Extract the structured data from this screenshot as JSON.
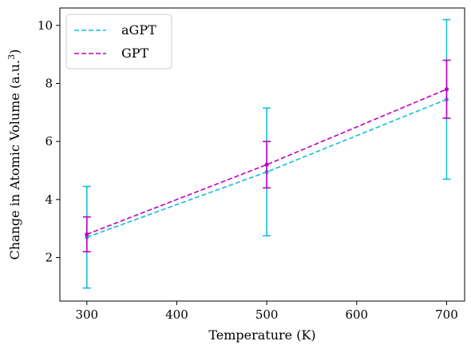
{
  "chart_data": {
    "type": "line",
    "x": [
      300,
      500,
      700
    ],
    "xlabel": "Temperature (K)",
    "ylabel_main": "Change in Atomic Volume (a.u.",
    "ylabel_sup": "3",
    "ylabel_close": ")",
    "xlim": [
      270,
      720
    ],
    "ylim": [
      0.5,
      10.6
    ],
    "xticks": [
      "300",
      "400",
      "500",
      "600",
      "700"
    ],
    "yticks": [
      "2",
      "4",
      "6",
      "8",
      "10"
    ],
    "legend_position": "top-left",
    "series": [
      {
        "name": "aGPT",
        "color": "#17becf",
        "style": "dashed",
        "values": [
          2.7,
          4.95,
          7.45
        ],
        "err": [
          1.75,
          2.2,
          2.75
        ]
      },
      {
        "name": "GPT",
        "color": "#bf00bf",
        "style": "dashed",
        "values": [
          2.8,
          5.2,
          7.8
        ],
        "err": [
          0.6,
          0.8,
          1.0
        ]
      }
    ]
  }
}
